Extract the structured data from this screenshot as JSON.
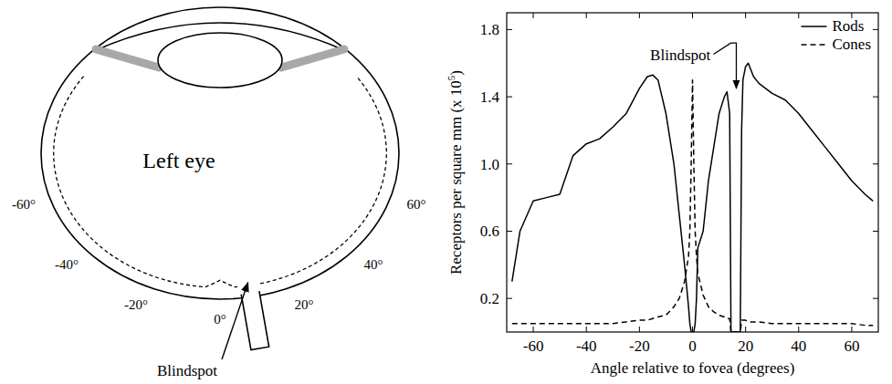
{
  "diagram": {
    "title": "Left eye",
    "blindspot": "Blindspot",
    "angles": [
      {
        "value": -60,
        "label": "-60°"
      },
      {
        "value": -40,
        "label": "-40°"
      },
      {
        "value": -20,
        "label": "-20°"
      },
      {
        "value": 0,
        "label": "0°"
      },
      {
        "value": 20,
        "label": "20°"
      },
      {
        "value": 40,
        "label": "40°"
      },
      {
        "value": 60,
        "label": "60°"
      }
    ]
  },
  "chart_data": {
    "type": "line",
    "xlabel": "Angle relative to fovea (degrees)",
    "ylabel": {
      "text": "Receptors per square mm (x 10",
      "superscript": "5",
      "suffix": ")"
    },
    "annotation": {
      "text": "Blindspot",
      "x": 16.5,
      "y": 1.45
    },
    "x": [
      -68,
      -65,
      -60,
      -55,
      -50,
      -45,
      -40,
      -35,
      -30,
      -25,
      -20,
      -17,
      -15,
      -13,
      -10,
      -7,
      -5,
      -3,
      -1.5,
      -1,
      -0.5,
      0,
      0.5,
      1,
      1.5,
      2,
      4,
      6,
      8,
      10,
      12,
      13,
      14,
      14.5,
      18,
      18.5,
      19,
      20,
      21,
      23,
      25,
      30,
      35,
      40,
      45,
      50,
      55,
      60,
      65,
      68
    ],
    "series": [
      {
        "name": "Rods",
        "color": "#000000",
        "line_style": "solid",
        "values": [
          0.3,
          0.6,
          0.78,
          0.8,
          0.82,
          1.05,
          1.12,
          1.15,
          1.22,
          1.3,
          1.45,
          1.52,
          1.53,
          1.5,
          1.3,
          1.0,
          0.7,
          0.4,
          0.15,
          0.05,
          0,
          0,
          0,
          0.05,
          0.2,
          0.5,
          0.6,
          0.9,
          1.1,
          1.3,
          1.4,
          1.43,
          1.3,
          0,
          0,
          1.2,
          1.5,
          1.58,
          1.6,
          1.52,
          1.48,
          1.42,
          1.38,
          1.3,
          1.2,
          1.1,
          1.0,
          0.9,
          0.82,
          0.78
        ]
      },
      {
        "name": "Cones",
        "color": "#000000",
        "line_style": "dashed",
        "values": [
          0.05,
          0.05,
          0.05,
          0.05,
          0.05,
          0.05,
          0.05,
          0.05,
          0.05,
          0.06,
          0.07,
          0.07,
          0.08,
          0.09,
          0.1,
          0.15,
          0.2,
          0.3,
          0.45,
          0.6,
          1.0,
          1.5,
          1.0,
          0.6,
          0.45,
          0.35,
          0.22,
          0.15,
          0.12,
          0.1,
          0.09,
          0.08,
          0.08,
          0,
          0,
          0.07,
          0.07,
          0.07,
          0.06,
          0.06,
          0.06,
          0.05,
          0.05,
          0.05,
          0.05,
          0.05,
          0.05,
          0.05,
          0.04,
          0.04
        ]
      }
    ],
    "xlim": [
      -70,
      70
    ],
    "xticks": [
      -60,
      -40,
      -20,
      0,
      20,
      40,
      60
    ],
    "ylim": [
      0,
      1.9
    ],
    "yticks": [
      0.2,
      0.6,
      {
        "value": 1,
        "label": "1.0"
      },
      1.4,
      1.8
    ],
    "grid": false,
    "legend": "upper right"
  }
}
